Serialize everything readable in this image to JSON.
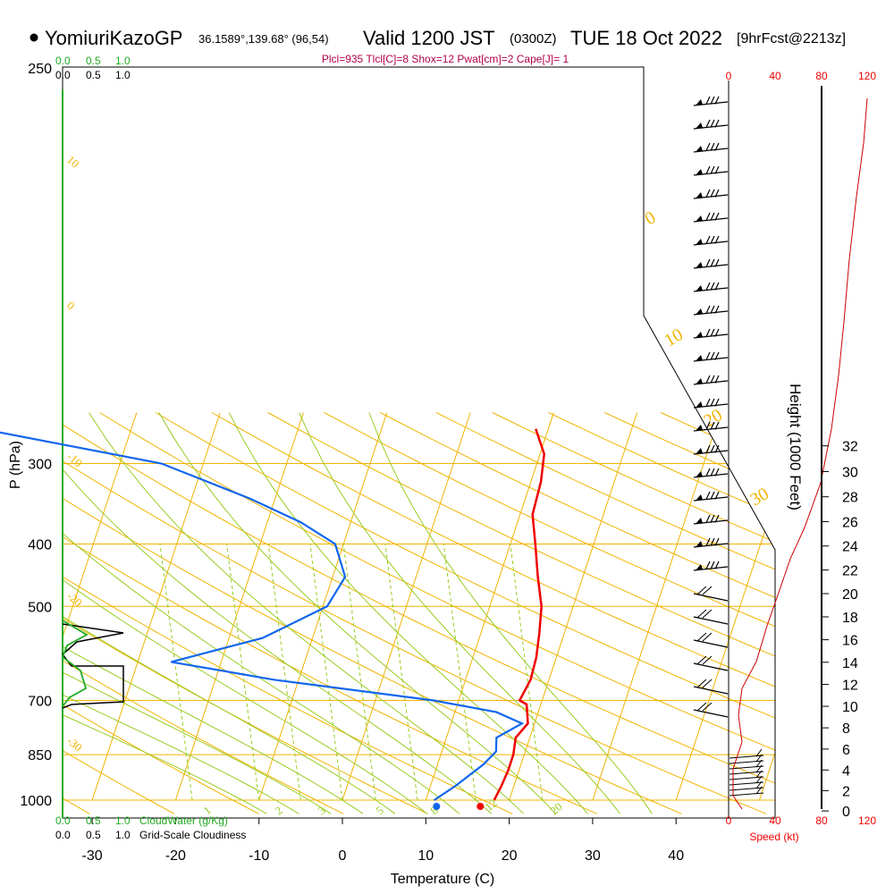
{
  "header": {
    "site": "YomiuriKazoGP",
    "coords": "36.1589°,139.68° (96,54)",
    "valid": "Valid 1200 JST",
    "zulu": "(0300Z)",
    "date": "TUE 18 Oct 2022",
    "fcst": "[9hrFcst@2213z]",
    "indices": "Plcl=935 Tlcl[C]=8 Shox=12 Pwat[cm]=2 Cape[J]= 1"
  },
  "colors": {
    "temperature": "#ee0000",
    "dewpoint": "#1166ee",
    "isobar": "#f0b400",
    "dry_adiabat": "#f0b400",
    "moist_adiabat": "#99cc22",
    "mixing_ratio": "#99cc22",
    "cloud_water": "#22aa22",
    "cloudiness": "#000000",
    "speed": "#ee0000"
  },
  "axes": {
    "xlabel": "Temperature (C)",
    "ylabel": "P (hPa)",
    "right_label": "Height (1000 Feet)",
    "x_ticks": [
      -30,
      -20,
      -10,
      0,
      10,
      20,
      30,
      40
    ],
    "p_ticks": [
      250,
      300,
      400,
      500,
      700,
      850,
      1000
    ],
    "height_ticks": [
      0,
      2,
      4,
      6,
      8,
      10,
      12,
      14,
      16,
      18,
      20,
      22,
      24,
      26,
      28,
      30,
      32
    ]
  },
  "cloud_scale": {
    "water_ticks": [
      "0.0",
      "0.5",
      "1.0"
    ],
    "cover_ticks": [
      "0.0",
      "0.5",
      "1.0"
    ],
    "water_label": "CloudWater (g/Kg)",
    "cover_label": "Grid-Scale Cloudiness"
  },
  "speed_scale": {
    "ticks": [
      "0",
      "40",
      "80",
      "120"
    ],
    "label": "Speed (kt)"
  },
  "adiabat_labels": {
    "dry": [
      "10",
      "0",
      "-10",
      "-20",
      "-30"
    ],
    "moist": [
      "0",
      "10",
      "20",
      "30"
    ],
    "mixing": [
      "1",
      "2",
      "3",
      "5",
      "8",
      "12",
      "20"
    ]
  },
  "chart_data": {
    "type": "line",
    "title": "Skew-T log-P sounding",
    "temperature": [
      {
        "p": 265,
        "t": 8.5
      },
      {
        "p": 290,
        "t": 10.5
      },
      {
        "p": 320,
        "t": 11.2
      },
      {
        "p": 360,
        "t": 11.5
      },
      {
        "p": 400,
        "t": 13.0
      },
      {
        "p": 450,
        "t": 14.6
      },
      {
        "p": 500,
        "t": 16.2
      },
      {
        "p": 550,
        "t": 17.0
      },
      {
        "p": 600,
        "t": 17.6
      },
      {
        "p": 650,
        "t": 17.8
      },
      {
        "p": 700,
        "t": 17.3
      },
      {
        "p": 710,
        "t": 18.3
      },
      {
        "p": 760,
        "t": 19.2
      },
      {
        "p": 800,
        "t": 18.3
      },
      {
        "p": 850,
        "t": 18.7
      },
      {
        "p": 900,
        "t": 18.7
      },
      {
        "p": 950,
        "t": 18.5
      },
      {
        "p": 1000,
        "t": 18.2
      }
    ],
    "dewpoint": [
      {
        "p": 265,
        "t": -58
      },
      {
        "p": 300,
        "t": -35
      },
      {
        "p": 340,
        "t": -23
      },
      {
        "p": 370,
        "t": -16
      },
      {
        "p": 400,
        "t": -11
      },
      {
        "p": 450,
        "t": -8.5
      },
      {
        "p": 500,
        "t": -9.5
      },
      {
        "p": 560,
        "t": -16
      },
      {
        "p": 610,
        "t": -26
      },
      {
        "p": 650,
        "t": -13
      },
      {
        "p": 700,
        "t": 7
      },
      {
        "p": 730,
        "t": 15
      },
      {
        "p": 760,
        "t": 18.5
      },
      {
        "p": 800,
        "t": 16
      },
      {
        "p": 840,
        "t": 16.5
      },
      {
        "p": 880,
        "t": 15.5
      },
      {
        "p": 950,
        "t": 13
      },
      {
        "p": 1000,
        "t": 11
      }
    ],
    "surface_temperature_c": 16,
    "surface_dewpoint_c": 11.5,
    "xlim": [
      -35,
      45
    ],
    "ylim_hpa": [
      1000,
      250
    ],
    "grid": true
  }
}
